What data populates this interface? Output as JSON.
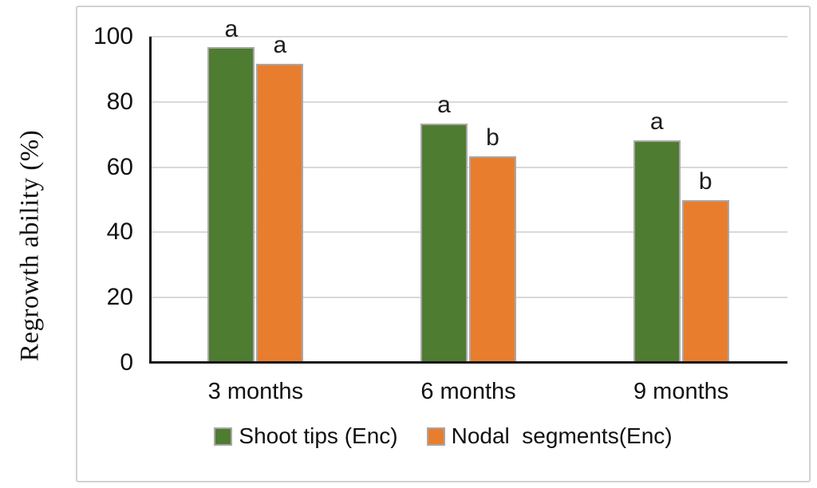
{
  "chart_data": {
    "type": "bar",
    "categories": [
      "3 months",
      "6 months",
      "9 months"
    ],
    "series": [
      {
        "name": "Shoot tips (Enc)",
        "color": "#4e7c31",
        "values": [
          96.7,
          73.3,
          68.3
        ],
        "significance_letters": [
          "a",
          "a",
          "a"
        ]
      },
      {
        "name": "Nodal  segments(Enc)",
        "color": "#e87d2e",
        "values": [
          91.7,
          63.3,
          50
        ],
        "significance_letters": [
          "a",
          "b",
          "b"
        ]
      }
    ],
    "title": "",
    "xlabel": "",
    "ylabel": "Regrowth ability (%)",
    "ylim": [
      0,
      100
    ],
    "yticks": [
      0,
      20,
      40,
      60,
      80,
      100
    ],
    "grid": true,
    "legend_position": "bottom"
  },
  "colors": {
    "gridline": "#d9d9d9",
    "axis": "#161616",
    "frame_border": "#d4d1d1",
    "bar_border": "#aaa7a7",
    "text": "#111111"
  }
}
